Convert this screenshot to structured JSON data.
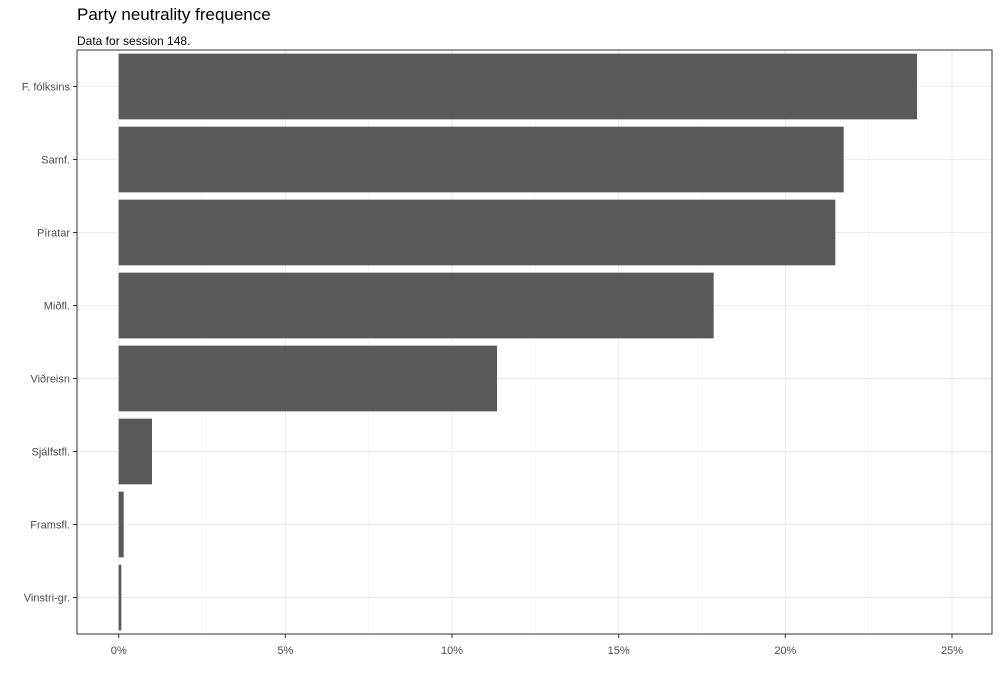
{
  "chart_data": {
    "type": "bar",
    "orientation": "horizontal",
    "title": "Party neutrality frequence",
    "subtitle": "Data for session 148.",
    "xlabel": "",
    "ylabel": "",
    "categories": [
      "F. fólksins",
      "Samf.",
      "Píratar",
      "Miðfl.",
      "Viðreisn",
      "Sjálfstfl.",
      "Framsfl.",
      "Vinstri-gr."
    ],
    "values": [
      23.95,
      21.75,
      21.5,
      17.85,
      11.35,
      1.0,
      0.15,
      0.08
    ],
    "xlim": [
      -1.25,
      26.2
    ],
    "x_ticks": [
      0,
      5,
      10,
      15,
      20,
      25
    ],
    "x_tick_labels": [
      "0%",
      "5%",
      "10%",
      "15%",
      "20%",
      "25%"
    ],
    "grid": true,
    "legend": "none",
    "bar_color": "#595959",
    "grid_color": "#ebebeb",
    "border_color": "#333333"
  }
}
